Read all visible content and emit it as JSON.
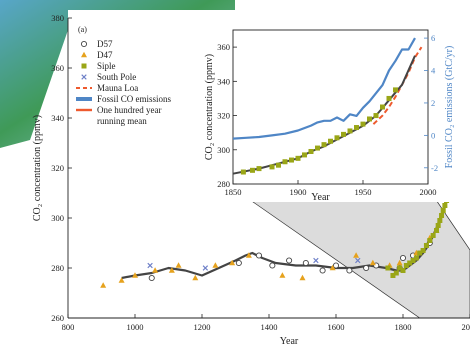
{
  "chart_data": [
    {
      "type": "scatter",
      "panel_label": "(a)",
      "xlabel": "Year",
      "ylabel": "CO₂ concentration (ppmv)",
      "xlim": [
        800,
        2000
      ],
      "ylim": [
        260,
        380
      ],
      "x_ticks": [
        "800",
        "1000",
        "1200",
        "1400",
        "1600",
        "1800",
        "2000"
      ],
      "y_ticks": [
        "260",
        "280",
        "300",
        "320",
        "340",
        "360",
        "380"
      ],
      "legend": {
        "position": "top-left",
        "entries": [
          {
            "label": "D57",
            "marker": "open-circle",
            "color": "#444444"
          },
          {
            "label": "D47",
            "marker": "triangle",
            "color": "#e6a21d"
          },
          {
            "label": "Siple",
            "marker": "square",
            "color": "#9aa617"
          },
          {
            "label": "South Pole",
            "marker": "cross",
            "color": "#6c7ec7"
          },
          {
            "label": "Mauna Loa",
            "marker": "dashed-line",
            "color": "#ee5a2e"
          },
          {
            "label": "Fossil CO  emissions",
            "marker": "thick-line",
            "color": "#4f86c6"
          },
          {
            "label": "One hundred year\nrunning mean",
            "marker": "line",
            "color": "#ee5a2e"
          }
        ]
      },
      "series": [
        {
          "name": "D57",
          "marker": "open-circle",
          "x": [
            1050,
            1310,
            1370,
            1410,
            1460,
            1510,
            1560,
            1600,
            1640,
            1690,
            1720,
            1790,
            1800,
            1830,
            1880
          ],
          "y": [
            276,
            282,
            285,
            281,
            283,
            282,
            279,
            281,
            279,
            280,
            281,
            280,
            284,
            285,
            290
          ]
        },
        {
          "name": "D47",
          "marker": "triangle",
          "x": [
            905,
            960,
            1000,
            1060,
            1110,
            1130,
            1180,
            1240,
            1290,
            1340,
            1440,
            1500,
            1590,
            1660,
            1710,
            1760,
            1790,
            1840,
            1880,
            1900
          ],
          "y": [
            273,
            275,
            277,
            279,
            279,
            281,
            276,
            281,
            282,
            285,
            277,
            276,
            280,
            285,
            282,
            281,
            282,
            286,
            292,
            295
          ]
        },
        {
          "name": "Siple",
          "marker": "square",
          "x": [
            1755,
            1770,
            1780,
            1790,
            1800,
            1810,
            1820,
            1830,
            1840,
            1850,
            1860,
            1870,
            1880,
            1890,
            1900,
            1905,
            1910,
            1915,
            1920,
            1925,
            1930,
            1935,
            1940,
            1945,
            1950,
            1955,
            1960,
            1965,
            1970,
            1975
          ],
          "y": [
            280,
            277,
            278,
            280,
            279,
            281,
            282,
            283,
            284,
            286,
            287,
            289,
            291,
            293,
            295,
            297,
            299,
            301,
            303,
            305,
            307,
            309,
            311,
            313,
            316,
            319,
            322,
            330,
            345,
            355
          ]
        },
        {
          "name": "South Pole",
          "marker": "cross",
          "x": [
            1045,
            1210,
            1540,
            1665
          ],
          "y": [
            281,
            280,
            283,
            283
          ]
        },
        {
          "name": "One hundred year running mean",
          "marker": "line",
          "x": [
            960,
            1000,
            1050,
            1100,
            1150,
            1200,
            1250,
            1300,
            1330,
            1350,
            1380,
            1420,
            1480,
            1540,
            1600,
            1650,
            1700,
            1750,
            1780,
            1800,
            1820,
            1840,
            1860,
            1880,
            1900,
            1920,
            1940,
            1950,
            1960,
            1970,
            1980,
            1990
          ],
          "y": [
            276,
            277,
            278,
            280,
            279,
            277,
            280,
            283,
            285,
            286,
            284,
            282,
            281,
            281,
            280,
            280,
            281,
            280,
            279,
            279,
            281,
            283,
            286,
            290,
            296,
            303,
            312,
            318,
            327,
            340,
            355,
            372
          ]
        }
      ]
    },
    {
      "type": "line",
      "panel": "inset",
      "xlabel": "Year",
      "ylabel": "CO₂ concentration (ppmv)",
      "y2label": "Fossil CO₂ emissions (GtC/yr)",
      "xlim": [
        1850,
        2000
      ],
      "ylim": [
        280,
        370
      ],
      "y2lim": [
        -3,
        6.5
      ],
      "x_ticks": [
        "1850",
        "1900",
        "1950",
        "2000"
      ],
      "y_ticks": [
        "280",
        "300",
        "320",
        "340",
        "360"
      ],
      "y2_ticks": [
        "-2",
        "0",
        "2",
        "4",
        "6"
      ],
      "series": [
        {
          "name": "Fossil CO  emissions",
          "axis": "right",
          "x": [
            1850,
            1860,
            1870,
            1880,
            1890,
            1900,
            1910,
            1915,
            1920,
            1925,
            1930,
            1935,
            1940,
            1945,
            1950,
            1955,
            1960,
            1965,
            1970,
            1975,
            1980,
            1985,
            1990
          ],
          "y": [
            -0.2,
            -0.15,
            -0.1,
            0,
            0.1,
            0.3,
            0.6,
            0.8,
            0.9,
            0.9,
            1.1,
            0.9,
            1.3,
            1.2,
            1.7,
            2.1,
            2.6,
            3.1,
            4.0,
            4.6,
            5.3,
            5.3,
            6.0
          ]
        },
        {
          "name": "Mauna Loa",
          "axis": "left",
          "x": [
            1958,
            1965,
            1970,
            1975,
            1980,
            1985,
            1990,
            1995
          ],
          "y": [
            315,
            320,
            325,
            331,
            338,
            345,
            354,
            360
          ]
        },
        {
          "name": "Siple",
          "axis": "left",
          "x": [
            1858,
            1865,
            1870,
            1880,
            1885,
            1890,
            1895,
            1900,
            1905,
            1910,
            1915,
            1920,
            1925,
            1930,
            1935,
            1940,
            1945,
            1950,
            1955,
            1960,
            1965,
            1970,
            1975
          ],
          "y": [
            287,
            288,
            289,
            290,
            291,
            293,
            294,
            295,
            297,
            299,
            301,
            303,
            305,
            307,
            309,
            311,
            313,
            315,
            318,
            320,
            325,
            330,
            335
          ]
        },
        {
          "name": "One hundred year running mean",
          "axis": "left",
          "x": [
            1850,
            1870,
            1890,
            1900,
            1910,
            1920,
            1930,
            1940,
            1950,
            1960,
            1970,
            1980,
            1990
          ],
          "y": [
            286,
            289,
            293,
            295,
            299,
            302,
            306,
            310,
            314,
            320,
            329,
            338,
            355
          ]
        }
      ]
    }
  ]
}
